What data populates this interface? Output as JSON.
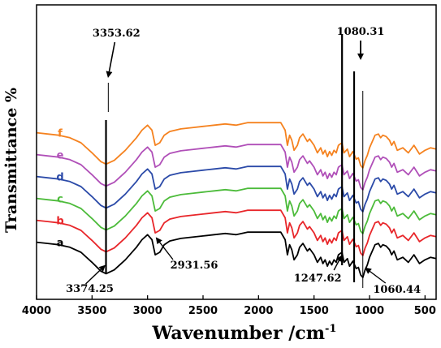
{
  "chart_data": {
    "type": "line",
    "title": "",
    "xlabel": "Wavenumber /cm",
    "xlabel_superscript": "-1",
    "ylabel": "Transmittance %",
    "xlim": [
      4000,
      400
    ],
    "x_reversed": true,
    "x_ticks": [
      4000,
      3500,
      3000,
      2500,
      2000,
      1500,
      1000,
      500
    ],
    "y_ticks": [],
    "grid": false,
    "legend": "inline labels at left",
    "series_order_bottom_to_top": [
      "a",
      "b",
      "c",
      "d",
      "e",
      "f"
    ],
    "series": [
      {
        "name": "a",
        "color": "#000000",
        "offset": 0
      },
      {
        "name": "b",
        "color": "#e8262a",
        "offset": 1
      },
      {
        "name": "c",
        "color": "#4cbb3a",
        "offset": 2
      },
      {
        "name": "d",
        "color": "#2b4aa8",
        "offset": 3
      },
      {
        "name": "e",
        "color": "#b04fb8",
        "offset": 4
      },
      {
        "name": "f",
        "color": "#f5821f",
        "offset": 5
      }
    ],
    "base_spectrum": {
      "x": [
        4000,
        3900,
        3800,
        3700,
        3600,
        3500,
        3420,
        3374,
        3300,
        3200,
        3100,
        3050,
        3000,
        2960,
        2931,
        2890,
        2850,
        2800,
        2700,
        2600,
        2500,
        2400,
        2300,
        2200,
        2100,
        2000,
        1900,
        1800,
        1760,
        1740,
        1720,
        1700,
        1680,
        1650,
        1630,
        1600,
        1560,
        1540,
        1500,
        1470,
        1440,
        1420,
        1400,
        1380,
        1360,
        1340,
        1320,
        1300,
        1280,
        1248,
        1230,
        1200,
        1180,
        1150,
        1120,
        1100,
        1080,
        1060,
        1040,
        1020,
        1000,
        970,
        950,
        920,
        900,
        880,
        850,
        820,
        800,
        780,
        750,
        700,
        650,
        600,
        550,
        500,
        450,
        400
      ],
      "y": [
        28,
        27,
        26,
        24,
        20,
        12,
        5,
        3,
        6,
        14,
        24,
        30,
        34,
        30,
        18,
        20,
        26,
        29,
        31,
        32,
        33,
        34,
        35,
        34,
        36,
        36,
        36,
        36,
        30,
        18,
        26,
        22,
        14,
        18,
        24,
        27,
        21,
        23,
        18,
        12,
        16,
        11,
        14,
        9,
        13,
        10,
        14,
        12,
        18,
        20,
        12,
        15,
        9,
        13,
        7,
        8,
        2,
        0,
        6,
        10,
        16,
        22,
        26,
        27,
        24,
        26,
        25,
        22,
        18,
        21,
        14,
        16,
        12,
        18,
        11,
        14,
        16,
        15
      ]
    },
    "annotations": [
      {
        "text": "3353.62",
        "x": 3353.62
      },
      {
        "text": "3374.25",
        "x": 3374.25
      },
      {
        "text": "2931.56",
        "x": 2931.56
      },
      {
        "text": "1247.62",
        "x": 1247.62
      },
      {
        "text": "1080.31",
        "x": 1080.31
      },
      {
        "text": "1060.44",
        "x": 1060.44
      }
    ]
  }
}
